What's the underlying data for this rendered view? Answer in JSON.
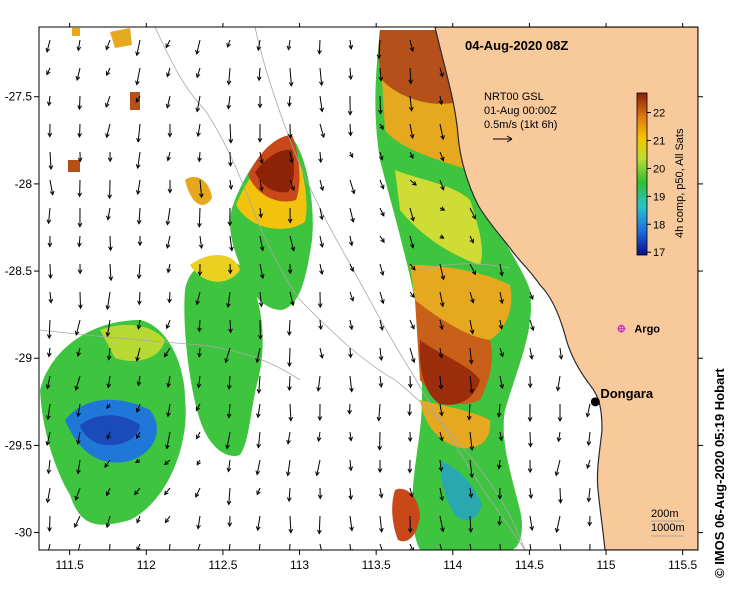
{
  "title": "04-Aug-2020 08Z",
  "current_info": {
    "line1": "NRT00 GSL",
    "line2": "01-Aug 00:00Z",
    "line3": "0.5m/s (1kt 6h)"
  },
  "colorbar": {
    "label": "4h comp, p50, All Sats",
    "ticks": [
      17,
      18,
      19,
      20,
      21,
      22
    ]
  },
  "places": {
    "argo": "Argo",
    "dongara": "Dongara"
  },
  "isobaths": {
    "line1": "200m",
    "line2": "1000m"
  },
  "credit": "© IMOS 06-Aug-2020 05:19 Hobart",
  "map_data": {
    "lon_range": [
      111.3,
      115.6
    ],
    "lat_range": [
      -30.1,
      -27.1
    ],
    "lon_ticks": [
      111.5,
      112,
      112.5,
      113,
      113.5,
      114,
      114.5,
      115,
      115.5
    ],
    "lat_ticks": [
      -27.5,
      -28,
      -28.5,
      -29,
      -29.5,
      -30
    ],
    "lon_tick_labels": [
      "111.5",
      "112",
      "112.5",
      "113",
      "113.5",
      "114",
      "114.5",
      "115",
      "115.5"
    ],
    "lat_tick_labels": [
      "-27.5",
      "-28",
      "-28.5",
      "-29",
      "-29.5",
      "-30"
    ],
    "colors": {
      "land": "#f8c99a",
      "coast": "#2a2a2a",
      "isobath": "#aaaaaa",
      "arrows": "#000000",
      "argo": "#d02ad8",
      "dongara": "#000000"
    },
    "argo_location": [
      115.1,
      -28.83
    ],
    "dongara_location": [
      114.93,
      -29.25
    ]
  }
}
